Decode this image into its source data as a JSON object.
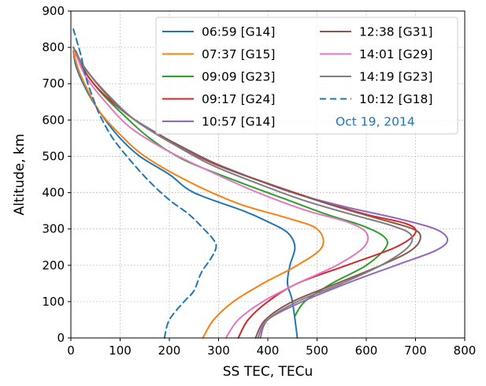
{
  "chart_data": {
    "type": "line",
    "xlabel": "SS TEC, TECu",
    "ylabel": "Altitude, km",
    "xlim": [
      0,
      800
    ],
    "ylim": [
      0,
      900
    ],
    "xticks": [
      "0",
      "100",
      "200",
      "300",
      "400",
      "500",
      "600",
      "700",
      "800"
    ],
    "yticks": [
      "0",
      "100",
      "200",
      "300",
      "400",
      "500",
      "600",
      "700",
      "800",
      "900"
    ],
    "grid": true,
    "legend_position": "top-right",
    "annotation": {
      "text": "Oct 19, 2014",
      "color": "#1f77b4"
    },
    "series": [
      {
        "name": "06:59 [G14]",
        "color": "#1f77b4",
        "style": "solid",
        "points": [
          [
            460,
            0
          ],
          [
            450,
            100
          ],
          [
            440,
            150
          ],
          [
            445,
            200
          ],
          [
            455,
            250
          ],
          [
            440,
            290
          ],
          [
            400,
            320
          ],
          [
            350,
            350
          ],
          [
            250,
            400
          ],
          [
            200,
            450
          ],
          [
            140,
            500
          ],
          [
            100,
            550
          ],
          [
            70,
            600
          ],
          [
            45,
            650
          ],
          [
            25,
            700
          ],
          [
            10,
            750
          ],
          [
            5,
            790
          ]
        ]
      },
      {
        "name": "07:37 [G15]",
        "color": "#ff7f0e",
        "style": "solid",
        "points": [
          [
            268,
            0
          ],
          [
            290,
            50
          ],
          [
            330,
            100
          ],
          [
            390,
            150
          ],
          [
            460,
            200
          ],
          [
            510,
            250
          ],
          [
            500,
            300
          ],
          [
            440,
            330
          ],
          [
            340,
            370
          ],
          [
            240,
            430
          ],
          [
            150,
            500
          ],
          [
            100,
            560
          ],
          [
            60,
            620
          ],
          [
            35,
            680
          ],
          [
            15,
            740
          ],
          [
            5,
            790
          ]
        ]
      },
      {
        "name": "09:09 [G23]",
        "color": "#2ca02c",
        "style": "solid",
        "points": [
          [
            455,
            60
          ],
          [
            475,
            100
          ],
          [
            530,
            150
          ],
          [
            600,
            200
          ],
          [
            640,
            250
          ],
          [
            635,
            280
          ],
          [
            590,
            310
          ],
          [
            520,
            340
          ],
          [
            440,
            380
          ],
          [
            340,
            430
          ],
          [
            230,
            490
          ],
          [
            160,
            550
          ],
          [
            110,
            610
          ],
          [
            65,
            670
          ],
          [
            30,
            730
          ],
          [
            10,
            780
          ]
        ]
      },
      {
        "name": "09:17 [G24]",
        "color": "#d62728",
        "style": "solid",
        "points": [
          [
            340,
            0
          ],
          [
            360,
            50
          ],
          [
            400,
            100
          ],
          [
            460,
            150
          ],
          [
            560,
            200
          ],
          [
            660,
            250
          ],
          [
            700,
            290
          ],
          [
            680,
            315
          ],
          [
            600,
            340
          ],
          [
            500,
            380
          ],
          [
            390,
            430
          ],
          [
            290,
            480
          ],
          [
            200,
            540
          ],
          [
            130,
            600
          ],
          [
            75,
            660
          ],
          [
            35,
            720
          ],
          [
            10,
            790
          ]
        ]
      },
      {
        "name": "10:57 [G14]",
        "color": "#9467bd",
        "style": "solid",
        "points": [
          [
            380,
            0
          ],
          [
            400,
            50
          ],
          [
            470,
            100
          ],
          [
            560,
            150
          ],
          [
            660,
            200
          ],
          [
            740,
            240
          ],
          [
            765,
            270
          ],
          [
            740,
            300
          ],
          [
            660,
            330
          ],
          [
            560,
            360
          ],
          [
            450,
            400
          ],
          [
            350,
            450
          ],
          [
            260,
            500
          ],
          [
            180,
            560
          ],
          [
            110,
            620
          ],
          [
            60,
            690
          ],
          [
            20,
            760
          ],
          [
            5,
            800
          ]
        ]
      },
      {
        "name": "12:38 [G31]",
        "color": "#8c564b",
        "style": "solid",
        "points": [
          [
            375,
            0
          ],
          [
            395,
            50
          ],
          [
            450,
            100
          ],
          [
            540,
            150
          ],
          [
            630,
            200
          ],
          [
            690,
            240
          ],
          [
            710,
            275
          ],
          [
            695,
            300
          ],
          [
            620,
            330
          ],
          [
            520,
            370
          ],
          [
            410,
            420
          ],
          [
            310,
            470
          ],
          [
            220,
            530
          ],
          [
            140,
            590
          ],
          [
            80,
            660
          ],
          [
            30,
            740
          ],
          [
            5,
            800
          ]
        ]
      },
      {
        "name": "14:01 [G29]",
        "color": "#e377c2",
        "style": "solid",
        "points": [
          [
            315,
            0
          ],
          [
            340,
            50
          ],
          [
            390,
            100
          ],
          [
            460,
            150
          ],
          [
            540,
            200
          ],
          [
            595,
            250
          ],
          [
            600,
            290
          ],
          [
            560,
            320
          ],
          [
            480,
            350
          ],
          [
            380,
            400
          ],
          [
            280,
            460
          ],
          [
            190,
            520
          ],
          [
            120,
            580
          ],
          [
            70,
            650
          ],
          [
            30,
            720
          ],
          [
            8,
            790
          ]
        ]
      },
      {
        "name": "14:19 [G23]",
        "color": "#7f7f7f",
        "style": "solid",
        "points": [
          [
            385,
            0
          ],
          [
            400,
            50
          ],
          [
            460,
            100
          ],
          [
            550,
            150
          ],
          [
            630,
            200
          ],
          [
            685,
            250
          ],
          [
            690,
            285
          ],
          [
            650,
            310
          ],
          [
            570,
            340
          ],
          [
            470,
            380
          ],
          [
            370,
            430
          ],
          [
            280,
            480
          ],
          [
            200,
            540
          ],
          [
            130,
            600
          ],
          [
            75,
            670
          ],
          [
            30,
            740
          ],
          [
            5,
            800
          ]
        ]
      },
      {
        "name": "10:12 [G18]",
        "color": "#1f77b4",
        "style": "dashed",
        "points": [
          [
            190,
            0
          ],
          [
            200,
            50
          ],
          [
            230,
            100
          ],
          [
            250,
            130
          ],
          [
            265,
            180
          ],
          [
            285,
            220
          ],
          [
            295,
            250
          ],
          [
            290,
            270
          ],
          [
            270,
            300
          ],
          [
            240,
            340
          ],
          [
            200,
            380
          ],
          [
            160,
            430
          ],
          [
            120,
            490
          ],
          [
            85,
            550
          ],
          [
            60,
            610
          ],
          [
            45,
            660
          ],
          [
            30,
            720
          ],
          [
            20,
            780
          ],
          [
            5,
            850
          ]
        ]
      }
    ]
  }
}
